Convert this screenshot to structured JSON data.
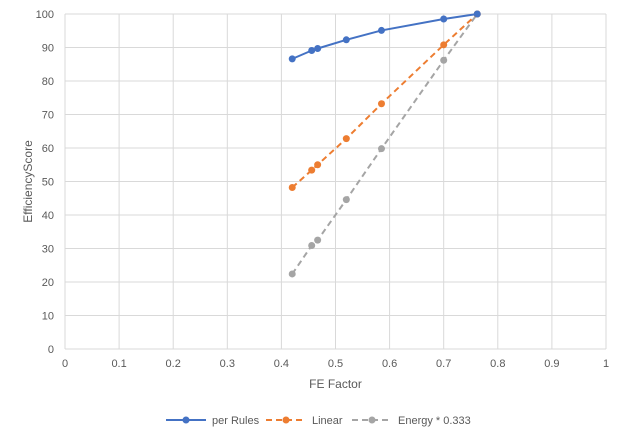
{
  "chart_data": {
    "type": "scatter",
    "xlabel": "FE Factor",
    "ylabel": "EfficiencyScore",
    "xlim": [
      0,
      1
    ],
    "ylim": [
      0,
      100
    ],
    "x_ticks": [
      "0",
      "0.1",
      "0.2",
      "0.3",
      "0.4",
      "0.5",
      "0.6",
      "0.7",
      "0.8",
      "0.9",
      "1"
    ],
    "y_ticks": [
      "0",
      "10",
      "20",
      "30",
      "40",
      "50",
      "60",
      "70",
      "80",
      "90",
      "100"
    ],
    "grid": true,
    "legend_position": "bottom",
    "series": [
      {
        "name": "per Rules",
        "color": "#4472C4",
        "line_style": "solid",
        "marker": "circle",
        "x": [
          0.42,
          0.456,
          0.467,
          0.52,
          0.585,
          0.7,
          0.762
        ],
        "y": [
          86.6,
          89.1,
          89.7,
          92.3,
          95.1,
          98.5,
          100
        ]
      },
      {
        "name": "Linear",
        "color": "#ED7D31",
        "line_style": "dashed",
        "marker": "circle",
        "x": [
          0.42,
          0.456,
          0.467,
          0.52,
          0.585,
          0.7,
          0.762
        ],
        "y": [
          48.2,
          53.4,
          55.0,
          62.8,
          73.2,
          90.8,
          100
        ]
      },
      {
        "name": "Energy * 0.333",
        "color": "#A5A5A5",
        "line_style": "dashed",
        "marker": "circle",
        "x": [
          0.42,
          0.456,
          0.467,
          0.52,
          0.585,
          0.7,
          0.762
        ],
        "y": [
          22.4,
          30.9,
          32.5,
          44.6,
          59.8,
          86.2,
          100
        ]
      }
    ]
  }
}
